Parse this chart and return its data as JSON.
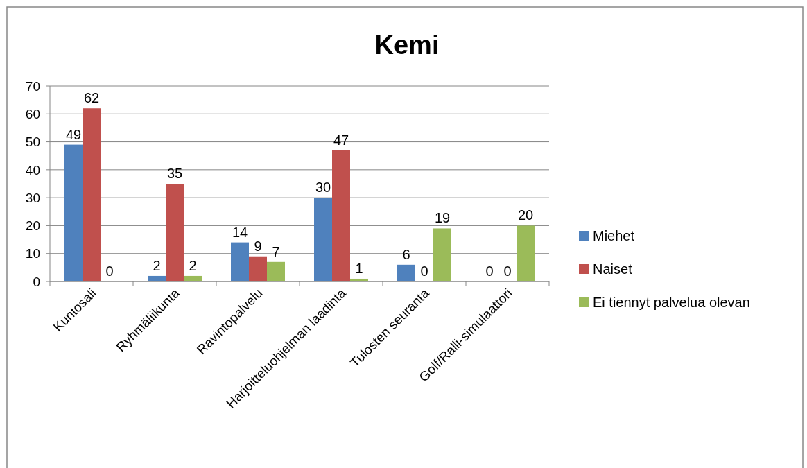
{
  "chart_data": {
    "type": "bar",
    "title": "Kemi",
    "categories": [
      "Kuntosali",
      "Ryhmäliikunta",
      "Ravintopalvelu",
      "Harjoitteluohjelman laadinta",
      "Tulosten seuranta",
      "Golf/Ralli-simulaattori"
    ],
    "series": [
      {
        "name": "Miehet",
        "color": "#4f81bd",
        "values": [
          49,
          2,
          14,
          30,
          6,
          0
        ]
      },
      {
        "name": "Naiset",
        "color": "#c0504d",
        "values": [
          62,
          35,
          9,
          47,
          0,
          0
        ]
      },
      {
        "name": "Ei tiennyt palvelua olevan",
        "color": "#9bbb59",
        "values": [
          0,
          2,
          7,
          1,
          19,
          20
        ]
      }
    ],
    "ylim": [
      0,
      70
    ],
    "yticks": [
      0,
      10,
      20,
      30,
      40,
      50,
      60,
      70
    ],
    "grid": "y",
    "legend": "right",
    "data_labels": true
  }
}
